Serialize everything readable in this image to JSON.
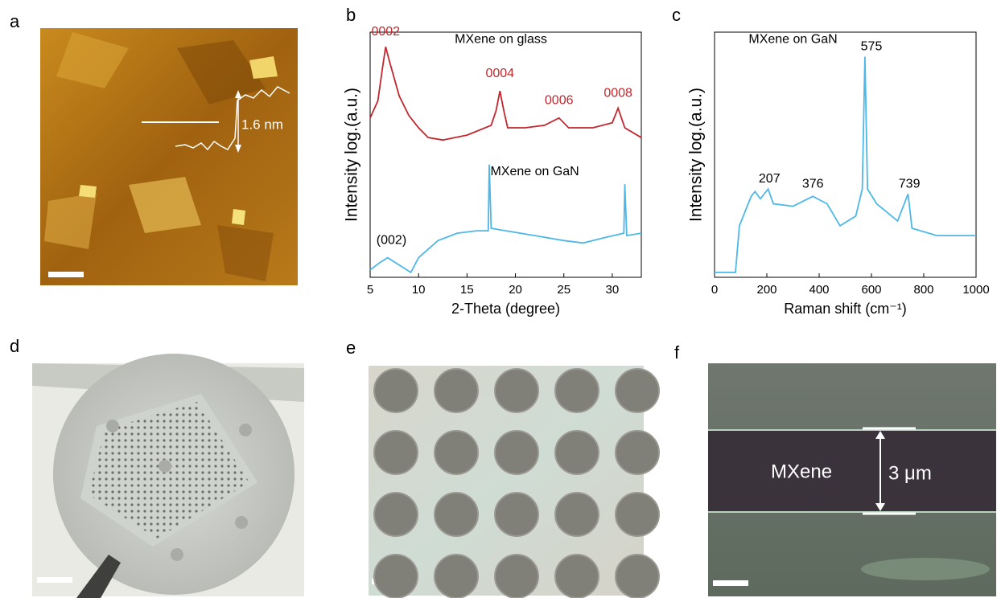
{
  "panel_labels": [
    "a",
    "b",
    "c",
    "d",
    "e",
    "f"
  ],
  "image_texts": {
    "afm_height": "1.6 nm",
    "layer_name": "MXene",
    "thickness": "3 μm"
  },
  "chart_data": [
    {
      "type": "line",
      "x_label": "2-Theta (degree)",
      "y_label": "Intensity log.(a.u.)",
      "xlim": [
        5,
        33
      ],
      "xticks": [
        5,
        10,
        15,
        20,
        25,
        30
      ],
      "ylim": [
        0,
        100
      ],
      "series": [
        {
          "name": "MXene on glass",
          "color": "#c1272d",
          "x": [
            5,
            5.8,
            6.3,
            6.6,
            7,
            8,
            9,
            10,
            11,
            12.5,
            15,
            17.5,
            18,
            18.4,
            18.8,
            19.2,
            21,
            23,
            24.5,
            25.5,
            28,
            30,
            30.6,
            31.3,
            33
          ],
          "values": [
            65,
            72,
            86,
            94,
            88,
            74,
            66,
            61,
            57,
            56,
            58,
            62,
            68,
            76,
            68,
            61,
            61,
            62,
            65,
            61,
            61,
            63,
            69,
            61,
            57
          ]
        },
        {
          "name": "MXene on GaN",
          "color": "#4db8e8",
          "x": [
            5,
            6,
            6.8,
            8,
            9.2,
            10,
            12,
            14,
            16,
            17.2,
            17.3,
            17.5,
            19,
            22,
            25,
            27,
            29,
            31.2,
            31.3,
            31.5,
            33
          ],
          "values": [
            3,
            6,
            8,
            5,
            2,
            8,
            15,
            18,
            19,
            19,
            46,
            20,
            19,
            17,
            15,
            14,
            16,
            18,
            38,
            17,
            18
          ]
        }
      ],
      "annotations": [
        {
          "text": "0002",
          "x": 6.6,
          "y": 100,
          "color": "#c1272d"
        },
        {
          "text": "MXene on glass",
          "x": 18.5,
          "y": 97,
          "color": "#000000"
        },
        {
          "text": "0004",
          "x": 18.4,
          "y": 83,
          "color": "#c1272d"
        },
        {
          "text": "0006",
          "x": 24.5,
          "y": 72,
          "color": "#c1272d"
        },
        {
          "text": "0008",
          "x": 30.6,
          "y": 75,
          "color": "#c1272d"
        },
        {
          "text": "MXene on GaN",
          "x": 22,
          "y": 43,
          "color": "#000000"
        },
        {
          "text": "(002)",
          "x": 7.2,
          "y": 15,
          "color": "#000000"
        }
      ]
    },
    {
      "type": "line",
      "x_label": "Raman shift (cm⁻¹)",
      "y_label": "Intensity log.(a.u.)",
      "xlim": [
        0,
        1000
      ],
      "xticks": [
        0,
        200,
        400,
        600,
        800,
        1000
      ],
      "ylim": [
        0,
        100
      ],
      "series": [
        {
          "name": "MXene on GaN",
          "color": "#4db8e8",
          "x": [
            0,
            80,
            95,
            140,
            155,
            175,
            205,
            225,
            300,
            376,
            430,
            480,
            540,
            565,
            575,
            585,
            620,
            700,
            740,
            755,
            850,
            1000
          ],
          "values": [
            2,
            2,
            21,
            33,
            35,
            32,
            36,
            30,
            29,
            33,
            30,
            21,
            25,
            36,
            90,
            36,
            30,
            23,
            34,
            20,
            17,
            17
          ]
        }
      ],
      "annotations": [
        {
          "text": "MXene on GaN",
          "x": 300,
          "y": 97,
          "color": "#000000"
        },
        {
          "text": "575",
          "x": 600,
          "y": 94,
          "color": "#000000"
        },
        {
          "text": "207",
          "x": 210,
          "y": 40,
          "color": "#000000"
        },
        {
          "text": "376",
          "x": 376,
          "y": 38,
          "color": "#000000"
        },
        {
          "text": "739",
          "x": 745,
          "y": 38,
          "color": "#000000"
        }
      ]
    }
  ]
}
